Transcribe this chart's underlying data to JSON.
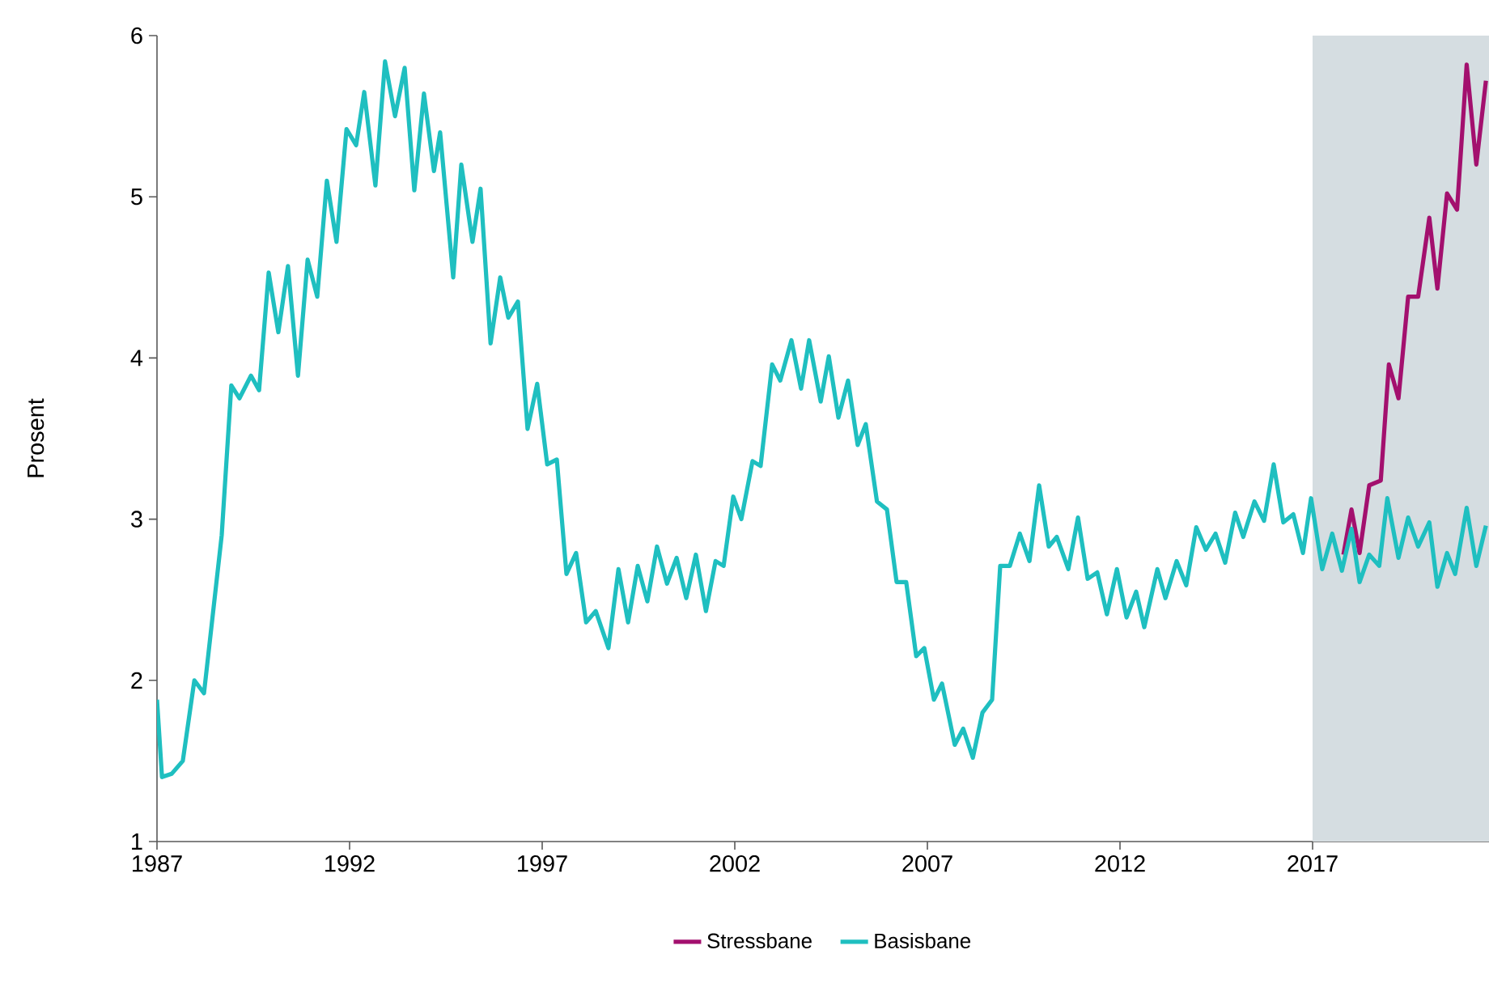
{
  "chart_data": {
    "type": "line",
    "ylabel": "Prosent",
    "x": [
      1987.0,
      1987.13,
      1987.38,
      1987.67,
      1987.97,
      1988.22,
      1988.68,
      1988.93,
      1989.14,
      1989.44,
      1989.65,
      1989.9,
      1990.15,
      1990.4,
      1990.66,
      1990.91,
      1991.16,
      1991.41,
      1991.66,
      1991.92,
      1992.17,
      1992.38,
      1992.67,
      1992.92,
      1993.18,
      1993.43,
      1993.68,
      1993.93,
      1994.19,
      1994.35,
      1994.69,
      1994.9,
      1995.19,
      1995.4,
      1995.66,
      1995.91,
      1996.12,
      1996.37,
      1996.62,
      1996.87,
      1997.13,
      1997.38,
      1997.63,
      1997.88,
      1998.14,
      1998.39,
      1998.72,
      1998.98,
      1999.23,
      1999.48,
      1999.73,
      1999.98,
      2000.24,
      2000.49,
      2000.74,
      2000.99,
      2001.25,
      2001.5,
      2001.71,
      2001.96,
      2002.17,
      2002.46,
      2002.67,
      2002.97,
      2003.18,
      2003.47,
      2003.72,
      2003.93,
      2004.23,
      2004.44,
      2004.69,
      2004.94,
      2005.19,
      2005.4,
      2005.69,
      2005.95,
      2006.2,
      2006.45,
      2006.71,
      2006.92,
      2007.17,
      2007.38,
      2007.71,
      2007.93,
      2008.18,
      2008.43,
      2008.68,
      2008.89,
      2009.14,
      2009.4,
      2009.65,
      2009.9,
      2010.15,
      2010.36,
      2010.66,
      2010.91,
      2011.16,
      2011.41,
      2011.66,
      2011.92,
      2012.17,
      2012.42,
      2012.63,
      2012.97,
      2013.18,
      2013.47,
      2013.72,
      2013.98,
      2014.23,
      2014.48,
      2014.73,
      2014.99,
      2015.2,
      2015.49,
      2015.74,
      2015.99,
      2016.24,
      2016.5,
      2016.75,
      2016.96,
      2017.25,
      2017.51,
      2017.76,
      2018.01,
      2018.22,
      2018.47,
      2018.73,
      2018.94,
      2019.23,
      2019.48,
      2019.74,
      2020.03,
      2020.24,
      2020.49,
      2020.7,
      2021.0,
      2021.25,
      2021.5
    ],
    "series": [
      {
        "name": "Stressbane",
        "color": "#a3106e",
        "x": [
          2017.8,
          2018.01,
          2018.22,
          2018.47,
          2018.77,
          2018.98,
          2019.23,
          2019.48,
          2019.74,
          2020.03,
          2020.24,
          2020.49,
          2020.75,
          2021.0,
          2021.25,
          2021.5
        ],
        "values": [
          2.78,
          3.06,
          2.79,
          3.21,
          3.24,
          3.96,
          3.75,
          4.38,
          4.38,
          4.87,
          4.43,
          5.02,
          4.92,
          5.82,
          5.2,
          5.72
        ]
      },
      {
        "name": "Basisbane",
        "color": "#1fbfc0",
        "values": [
          1.88,
          1.4,
          1.42,
          1.5,
          2.0,
          1.92,
          2.9,
          3.83,
          3.75,
          3.89,
          3.8,
          4.53,
          4.16,
          4.57,
          3.89,
          4.61,
          4.38,
          5.1,
          4.72,
          5.42,
          5.32,
          5.65,
          5.07,
          5.84,
          5.5,
          5.8,
          5.04,
          5.64,
          5.16,
          5.4,
          4.5,
          5.2,
          4.72,
          5.05,
          4.09,
          4.5,
          4.25,
          4.35,
          3.56,
          3.84,
          3.34,
          3.37,
          2.66,
          2.79,
          2.36,
          2.43,
          2.2,
          2.69,
          2.36,
          2.71,
          2.49,
          2.83,
          2.6,
          2.76,
          2.51,
          2.78,
          2.43,
          2.74,
          2.71,
          3.14,
          3.0,
          3.36,
          3.33,
          3.96,
          3.86,
          4.11,
          3.81,
          4.11,
          3.73,
          4.01,
          3.63,
          3.86,
          3.46,
          3.59,
          3.11,
          3.06,
          2.61,
          2.61,
          2.15,
          2.2,
          1.88,
          1.98,
          1.6,
          1.7,
          1.52,
          1.8,
          1.88,
          2.71,
          2.71,
          2.91,
          2.74,
          3.21,
          2.83,
          2.89,
          2.69,
          3.01,
          2.63,
          2.67,
          2.41,
          2.69,
          2.39,
          2.55,
          2.33,
          2.69,
          2.51,
          2.74,
          2.59,
          2.95,
          2.81,
          2.91,
          2.73,
          3.04,
          2.89,
          3.11,
          2.99,
          3.34,
          2.98,
          3.03,
          2.79,
          3.13,
          2.69,
          2.91,
          2.68,
          2.94,
          2.61,
          2.78,
          2.71,
          3.13,
          2.76,
          3.01,
          2.83,
          2.98,
          2.58,
          2.79,
          2.66,
          3.07,
          2.71,
          2.96
        ]
      }
    ],
    "xlim": [
      1987,
      2021.58
    ],
    "xticks": [
      1987,
      1992,
      1997,
      2002,
      2007,
      2012,
      2017
    ],
    "ylim": [
      1,
      6
    ],
    "yticks": [
      1,
      2,
      3,
      4,
      5,
      6
    ],
    "bands": [
      {
        "axis": "x",
        "from": 2017,
        "to": 2021.58,
        "color": "#d5dde1"
      }
    ],
    "legend": "bottom",
    "grid": false,
    "marker": "none",
    "line_style": "solid"
  }
}
